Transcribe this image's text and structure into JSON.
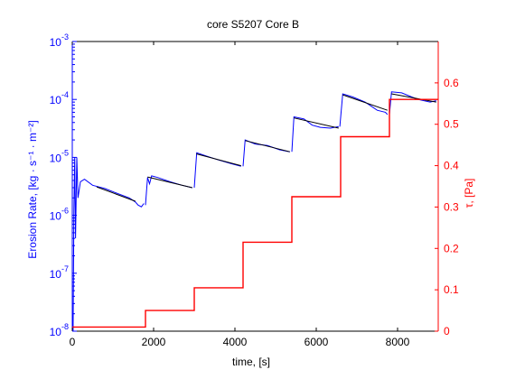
{
  "chart_data": {
    "type": "line",
    "title": "core S5207 Core B",
    "xlabel": "time, [s]",
    "ylabel_left": "Erosion Rate, [kg · s⁻¹ · m⁻²]",
    "ylabel_right": "τ, [Pa]",
    "xlim": [
      0,
      9000
    ],
    "xticks": [
      0,
      2000,
      4000,
      6000,
      8000
    ],
    "xtick_labels": [
      "0",
      "2000",
      "4000",
      "6000",
      "8000"
    ],
    "ylim_left": [
      1e-08,
      0.001
    ],
    "yscale_left": "log",
    "yticks_left": [
      1e-08,
      1e-07,
      1e-06,
      1e-05,
      0.0001,
      0.001
    ],
    "ytick_labels_left": [
      {
        "base": "10",
        "exp": "-8"
      },
      {
        "base": "10",
        "exp": "-7"
      },
      {
        "base": "10",
        "exp": "-6"
      },
      {
        "base": "10",
        "exp": "-5"
      },
      {
        "base": "10",
        "exp": "-4"
      },
      {
        "base": "10",
        "exp": "-3"
      }
    ],
    "ylim_right": [
      0,
      0.7
    ],
    "yticks_right": [
      0,
      0.1,
      0.2,
      0.3,
      0.4,
      0.5,
      0.6
    ],
    "ytick_labels_right": [
      "0",
      "0.1",
      "0.2",
      "0.3",
      "0.4",
      "0.5",
      "0.6"
    ],
    "grid": false,
    "legend": "none",
    "colors": {
      "left_axis": "#0000ff",
      "right_axis": "#ff0000",
      "measured": "#0000ff",
      "fit": "#000000",
      "stress": "#ff0000"
    },
    "series": [
      {
        "axis": "left",
        "style": "measured",
        "color": "#0000ff",
        "segments": [
          [
            [
              20,
              1e-08
            ],
            [
              40,
              1.2e-06
            ],
            [
              60,
              1e-05
            ],
            [
              80,
              4e-07
            ],
            [
              110,
              1e-05
            ],
            [
              140,
              2e-06
            ],
            [
              200,
              3.8e-06
            ],
            [
              300,
              4.2e-06
            ],
            [
              500,
              3.3e-06
            ],
            [
              800,
              2.9e-06
            ],
            [
              1100,
              2.4e-06
            ],
            [
              1400,
              2e-06
            ],
            [
              1550,
              1.7e-06
            ],
            [
              1620,
              1.5e-06
            ],
            [
              1700,
              1.4e-06
            ],
            [
              1760,
              1.6e-06
            ]
          ],
          [
            [
              1800,
              1.5e-06
            ],
            [
              1850,
              4.5e-06
            ],
            [
              1900,
              3.5e-06
            ],
            [
              1950,
              4.8e-06
            ],
            [
              2100,
              4.5e-06
            ],
            [
              2400,
              3.8e-06
            ],
            [
              2700,
              3.3e-06
            ],
            [
              2950,
              3e-06
            ]
          ],
          [
            [
              3000,
              3e-06
            ],
            [
              3060,
              1.2e-05
            ],
            [
              3300,
              1.05e-05
            ],
            [
              3600,
              9e-06
            ],
            [
              3900,
              7.8e-06
            ],
            [
              4150,
              7e-06
            ]
          ],
          [
            [
              4200,
              7e-06
            ],
            [
              4250,
              2e-05
            ],
            [
              4500,
              1.7e-05
            ],
            [
              4800,
              1.6e-05
            ],
            [
              5100,
              1.35e-05
            ],
            [
              5350,
              1.25e-05
            ]
          ],
          [
            [
              5400,
              1.25e-05
            ],
            [
              5450,
              5e-05
            ],
            [
              5700,
              4.6e-05
            ],
            [
              5900,
              3.6e-05
            ],
            [
              6100,
              3.3e-05
            ],
            [
              6350,
              3.2e-05
            ],
            [
              6550,
              3.4e-05
            ]
          ],
          [
            [
              6580,
              3.4e-05
            ],
            [
              6650,
              0.000125
            ],
            [
              6900,
              0.00011
            ],
            [
              7200,
              9e-05
            ],
            [
              7500,
              6.5e-05
            ],
            [
              7700,
              6e-05
            ],
            [
              7750,
              5.5e-05
            ]
          ],
          [
            [
              7800,
              5.5e-05
            ],
            [
              7850,
              0.000135
            ],
            [
              8100,
              0.00013
            ],
            [
              8500,
              0.0001
            ],
            [
              8800,
              9e-05
            ],
            [
              8950,
              9.5e-05
            ]
          ]
        ]
      },
      {
        "axis": "left",
        "style": "fit",
        "color": "#000000",
        "segments": [
          [
            [
              600,
              3.1e-06
            ],
            [
              1550,
              1.75e-06
            ]
          ],
          [
            [
              1850,
              4.6e-06
            ],
            [
              2950,
              3e-06
            ]
          ],
          [
            [
              3050,
              1.15e-05
            ],
            [
              4150,
              7.2e-06
            ]
          ],
          [
            [
              4250,
              1.95e-05
            ],
            [
              5350,
              1.25e-05
            ]
          ],
          [
            [
              5450,
              4.8e-05
            ],
            [
              6550,
              3.2e-05
            ]
          ],
          [
            [
              6650,
              0.00012
            ],
            [
              7750,
              6.5e-05
            ]
          ],
          [
            [
              7850,
              0.000125
            ],
            [
              8950,
              9e-05
            ]
          ]
        ]
      },
      {
        "axis": "right",
        "style": "stress",
        "color": "#ff0000",
        "x": [
          0,
          1800,
          1800,
          3000,
          3000,
          4200,
          4200,
          5400,
          5400,
          6600,
          6600,
          7800,
          7800,
          9000
        ],
        "y": [
          0.01,
          0.01,
          0.05,
          0.05,
          0.105,
          0.105,
          0.215,
          0.215,
          0.325,
          0.325,
          0.47,
          0.47,
          0.56,
          0.56
        ]
      }
    ]
  }
}
